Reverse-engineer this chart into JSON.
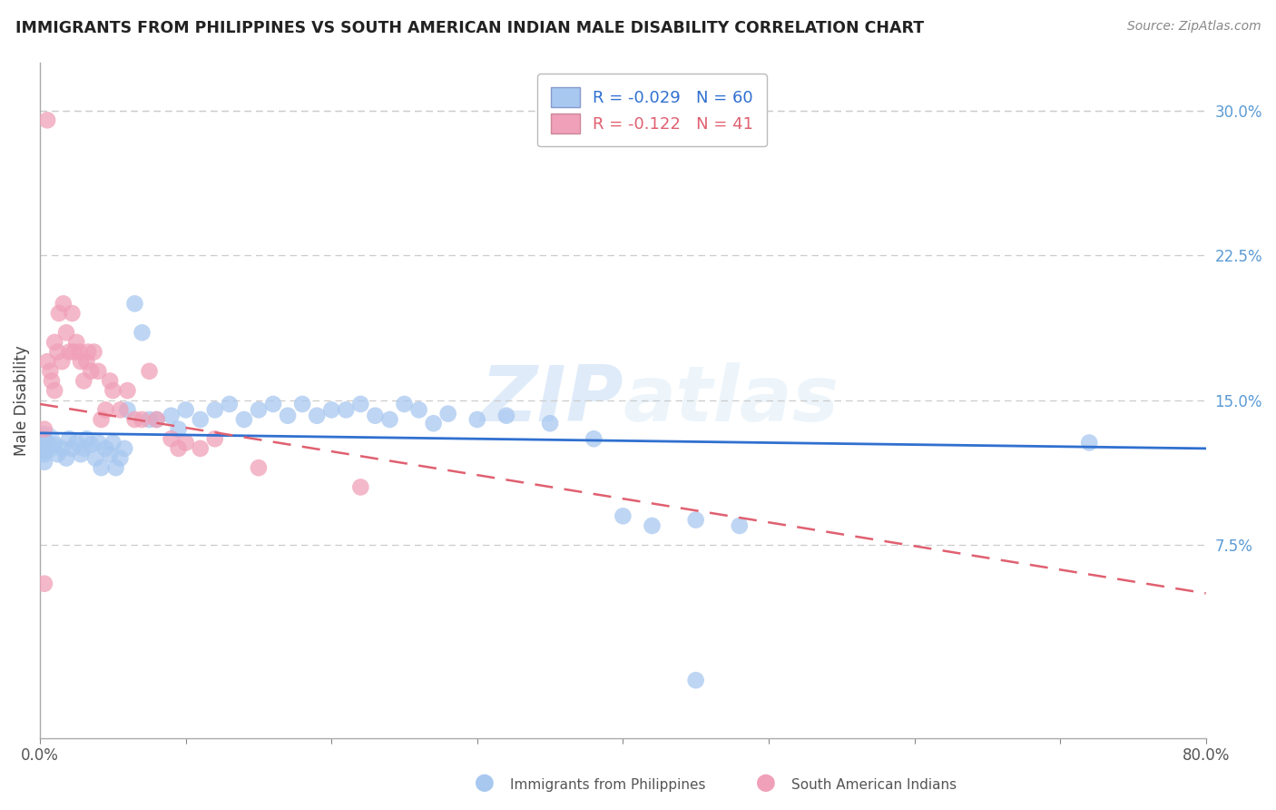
{
  "title": "IMMIGRANTS FROM PHILIPPINES VS SOUTH AMERICAN INDIAN MALE DISABILITY CORRELATION CHART",
  "source": "Source: ZipAtlas.com",
  "ylabel": "Male Disability",
  "watermark": "ZIPatlas",
  "xlim": [
    0.0,
    0.8
  ],
  "ylim": [
    -0.025,
    0.325
  ],
  "yticks_right": [
    0.075,
    0.15,
    0.225,
    0.3
  ],
  "ytick_labels_right": [
    "7.5%",
    "15.0%",
    "22.5%",
    "30.0%"
  ],
  "blue_R": -0.029,
  "blue_N": 60,
  "pink_R": -0.122,
  "pink_N": 41,
  "blue_color": "#A8C8F0",
  "pink_color": "#F0A0B8",
  "blue_line_color": "#3070D0",
  "pink_line_color": "#E06070",
  "grid_color": "#CCCCCC",
  "blue_scatter_x": [
    0.003,
    0.003,
    0.003,
    0.003,
    0.005,
    0.01,
    0.012,
    0.015,
    0.018,
    0.02,
    0.022,
    0.025,
    0.028,
    0.03,
    0.032,
    0.035,
    0.038,
    0.04,
    0.042,
    0.045,
    0.048,
    0.05,
    0.052,
    0.055,
    0.058,
    0.06,
    0.065,
    0.07,
    0.075,
    0.08,
    0.09,
    0.095,
    0.1,
    0.11,
    0.12,
    0.13,
    0.14,
    0.15,
    0.16,
    0.17,
    0.18,
    0.19,
    0.2,
    0.21,
    0.22,
    0.23,
    0.24,
    0.25,
    0.26,
    0.27,
    0.28,
    0.3,
    0.32,
    0.35,
    0.38,
    0.4,
    0.42,
    0.45,
    0.48,
    0.72
  ],
  "blue_scatter_y": [
    0.13,
    0.125,
    0.122,
    0.118,
    0.128,
    0.127,
    0.122,
    0.125,
    0.12,
    0.13,
    0.125,
    0.128,
    0.122,
    0.125,
    0.13,
    0.127,
    0.12,
    0.128,
    0.115,
    0.125,
    0.122,
    0.128,
    0.115,
    0.12,
    0.125,
    0.145,
    0.2,
    0.185,
    0.14,
    0.14,
    0.142,
    0.135,
    0.145,
    0.14,
    0.145,
    0.148,
    0.14,
    0.145,
    0.148,
    0.142,
    0.148,
    0.142,
    0.145,
    0.145,
    0.148,
    0.142,
    0.14,
    0.148,
    0.145,
    0.138,
    0.143,
    0.14,
    0.142,
    0.138,
    0.13,
    0.09,
    0.085,
    0.088,
    0.085,
    0.128
  ],
  "pink_scatter_x": [
    0.003,
    0.005,
    0.007,
    0.008,
    0.01,
    0.01,
    0.012,
    0.013,
    0.015,
    0.016,
    0.018,
    0.02,
    0.022,
    0.023,
    0.025,
    0.027,
    0.028,
    0.03,
    0.032,
    0.033,
    0.035,
    0.037,
    0.04,
    0.042,
    0.045,
    0.048,
    0.05,
    0.055,
    0.06,
    0.065,
    0.07,
    0.075,
    0.08,
    0.09,
    0.095,
    0.1,
    0.11,
    0.12,
    0.15,
    0.22,
    0.005
  ],
  "pink_scatter_y": [
    0.135,
    0.17,
    0.165,
    0.16,
    0.155,
    0.18,
    0.175,
    0.195,
    0.17,
    0.2,
    0.185,
    0.175,
    0.195,
    0.175,
    0.18,
    0.175,
    0.17,
    0.16,
    0.17,
    0.175,
    0.165,
    0.175,
    0.165,
    0.14,
    0.145,
    0.16,
    0.155,
    0.145,
    0.155,
    0.14,
    0.14,
    0.165,
    0.14,
    0.13,
    0.125,
    0.128,
    0.125,
    0.13,
    0.115,
    0.105,
    0.295
  ],
  "blue_line_x": [
    0.0,
    0.8
  ],
  "blue_line_y": [
    0.133,
    0.125
  ],
  "pink_line_x": [
    0.0,
    0.8
  ],
  "pink_line_y": [
    0.148,
    0.05
  ]
}
